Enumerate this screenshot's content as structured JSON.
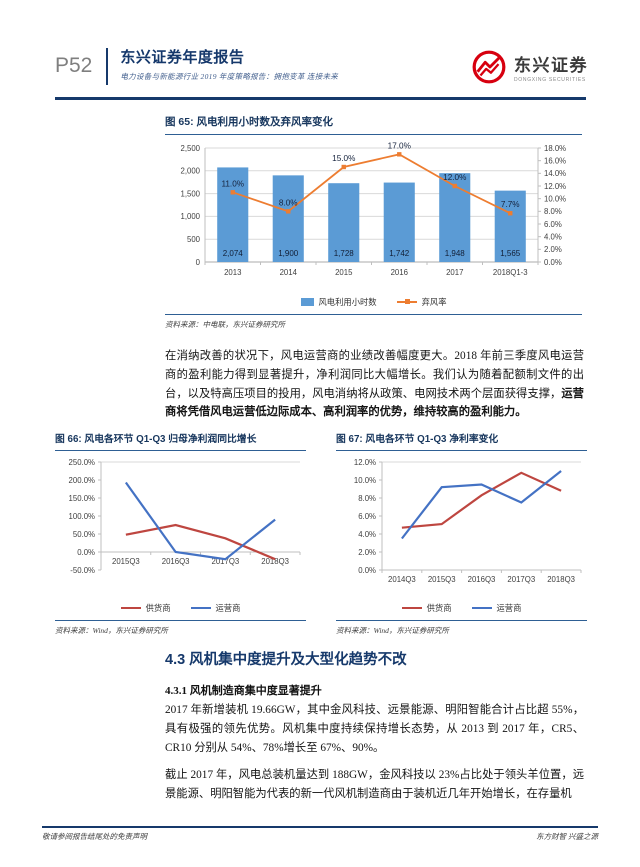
{
  "page": {
    "number": "P52",
    "report_title": "东兴证券年度报告",
    "report_subtitle": "电力设备与新能源行业 2019 年度策略报告：拥抱变革 连接未来",
    "brand": {
      "name_cn": "东兴证券",
      "name_en": "DONGXING SECURITIES",
      "brand_color": "#D7000F"
    },
    "footer_left": "敬请参阅报告结尾处的免责声明",
    "footer_right": "东方财智 兴盛之源"
  },
  "paragraphs": {
    "p1_normal": "在消纳改善的状况下，风电运营商的业绩改善幅度更大。2018 年前三季度风电运营商的盈利能力得到显著提升，净利润同比大幅增长。我们认为随着配额制文件的出台，以及特高压项目的投用，风电消纳将从政策、电网技术两个层面获得支撑，",
    "p1_bold": "运营商将凭借风电运营低边际成本、高利润率的优势，维持较高的盈利能力。",
    "section_heading": "4.3 风机集中度提升及大型化趋势不改",
    "sub_heading": "4.3.1 风机制造商集中度显著提升",
    "p2": "2017 年新增装机 19.66GW，其中金风科技、远景能源、明阳智能合计占比超 55%，具有极强的领先优势。风机集中度持续保持增长态势，从 2013 到 2017 年，CR5、CR10 分别从 54%、78%增长至 67%、90%。",
    "p3": "截止 2017 年，风电总装机量达到 188GW，金风科技以 23%占比处于领头羊位置，远景能源、明阳智能为代表的新一代风机制造商由于装机近几年开始增长，在存量机"
  },
  "chart_data": [
    {
      "id": "fig65",
      "type": "bar+line",
      "title": "图 65: 风电利用小时数及弃风率变化",
      "categories": [
        "2013",
        "2014",
        "2015",
        "2016",
        "2017",
        "2018Q1-3"
      ],
      "series": [
        {
          "name": "风电利用小时数",
          "type": "bar",
          "axis": "left",
          "color": "#5B9BD5",
          "values": [
            2074,
            1900,
            1728,
            1742,
            1948,
            1565
          ],
          "labels": [
            "2,074",
            "1,900",
            "1,728",
            "1,742",
            "1,948",
            "1,565"
          ]
        },
        {
          "name": "弃风率",
          "type": "line",
          "axis": "right",
          "color": "#ED7D31",
          "values": [
            11.0,
            8.0,
            15.0,
            17.0,
            12.0,
            7.7
          ],
          "labels": [
            "11.0%",
            "8.0%",
            "15.0%",
            "17.0%",
            "12.0%",
            "7.7%"
          ]
        }
      ],
      "left_axis": {
        "min": 0,
        "max": 2500,
        "step": 500,
        "ticks": [
          "0",
          "500",
          "1,000",
          "1,500",
          "2,000",
          "2,500"
        ]
      },
      "right_axis": {
        "min": 0,
        "max": 18,
        "step": 2,
        "ticks": [
          "0.0%",
          "2.0%",
          "4.0%",
          "6.0%",
          "8.0%",
          "10.0%",
          "12.0%",
          "14.0%",
          "16.0%",
          "18.0%"
        ]
      },
      "grid": true,
      "legend_position": "bottom",
      "source": "资料来源：中电联，东兴证券研究所"
    },
    {
      "id": "fig66",
      "type": "line",
      "title": "图 66: 风电各环节 Q1-Q3 归母净利润同比增长",
      "categories": [
        "2015Q3",
        "2016Q3",
        "2017Q3",
        "2018Q3"
      ],
      "series": [
        {
          "name": "供货商",
          "type": "line",
          "color": "#BE4640",
          "values": [
            48,
            75,
            38,
            -20
          ]
        },
        {
          "name": "运营商",
          "type": "line",
          "color": "#4472C4",
          "values": [
            193,
            0,
            -20,
            90
          ]
        }
      ],
      "y_axis": {
        "min": -50,
        "max": 250,
        "step": 50,
        "ticks": [
          "-50.0%",
          "0.0%",
          "50.0%",
          "100.0%",
          "150.0%",
          "200.0%",
          "250.0%"
        ]
      },
      "grid": false,
      "legend_position": "bottom",
      "source": "资料来源：Wind，东兴证券研究所"
    },
    {
      "id": "fig67",
      "type": "line",
      "title": "图 67: 风电各环节 Q1-Q3 净利率变化",
      "categories": [
        "2014Q3",
        "2015Q3",
        "2016Q3",
        "2017Q3",
        "2018Q3"
      ],
      "series": [
        {
          "name": "供货商",
          "type": "line",
          "color": "#BE4640",
          "values": [
            4.7,
            5.1,
            8.3,
            10.8,
            8.8
          ]
        },
        {
          "name": "运营商",
          "type": "line",
          "color": "#4472C4",
          "values": [
            3.5,
            9.2,
            9.5,
            7.5,
            11.0
          ]
        }
      ],
      "y_axis": {
        "min": 0,
        "max": 12,
        "step": 2,
        "ticks": [
          "0.0%",
          "2.0%",
          "4.0%",
          "6.0%",
          "8.0%",
          "10.0%",
          "12.0%"
        ]
      },
      "grid": false,
      "legend_position": "bottom",
      "source": "资料来源：Wind，东兴证券研究所"
    }
  ]
}
